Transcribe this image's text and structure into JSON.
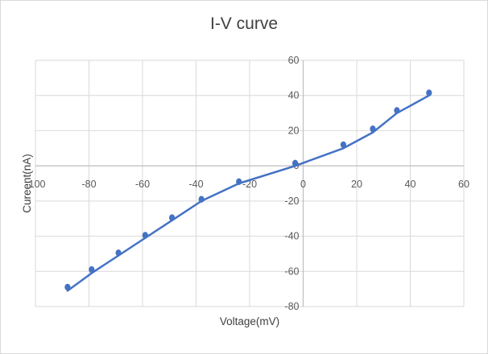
{
  "chart_data": {
    "type": "scatter",
    "title": "I-V curve",
    "xlabel": "Voltage(mV)",
    "ylabel": "Cureent(nA)",
    "xlim": [
      -100,
      60
    ],
    "ylim": [
      -80,
      60
    ],
    "x_ticks": [
      -100,
      -80,
      -60,
      -40,
      -20,
      0,
      20,
      40,
      60
    ],
    "y_ticks": [
      -80,
      -60,
      -40,
      -20,
      0,
      20,
      40,
      60
    ],
    "grid": true,
    "legend": "none",
    "series": [
      {
        "kind": "markers",
        "color": "#4472c4",
        "x": [
          -88,
          -79,
          -69,
          -59,
          -49,
          -38,
          -24,
          -3,
          15,
          26,
          35,
          47
        ],
        "y": [
          -69,
          -59,
          -49.5,
          -39.5,
          -29.5,
          -19,
          -9,
          1.5,
          12,
          21,
          31.5,
          41.5
        ]
      },
      {
        "kind": "line",
        "color": "#4472c4",
        "x": [
          -88,
          -79,
          -69,
          -59,
          -49,
          -38,
          -24,
          -3,
          15,
          26,
          35,
          47
        ],
        "y": [
          -71,
          -61,
          -51,
          -41,
          -31,
          -20,
          -10,
          0,
          10,
          19,
          30,
          40
        ]
      }
    ]
  }
}
